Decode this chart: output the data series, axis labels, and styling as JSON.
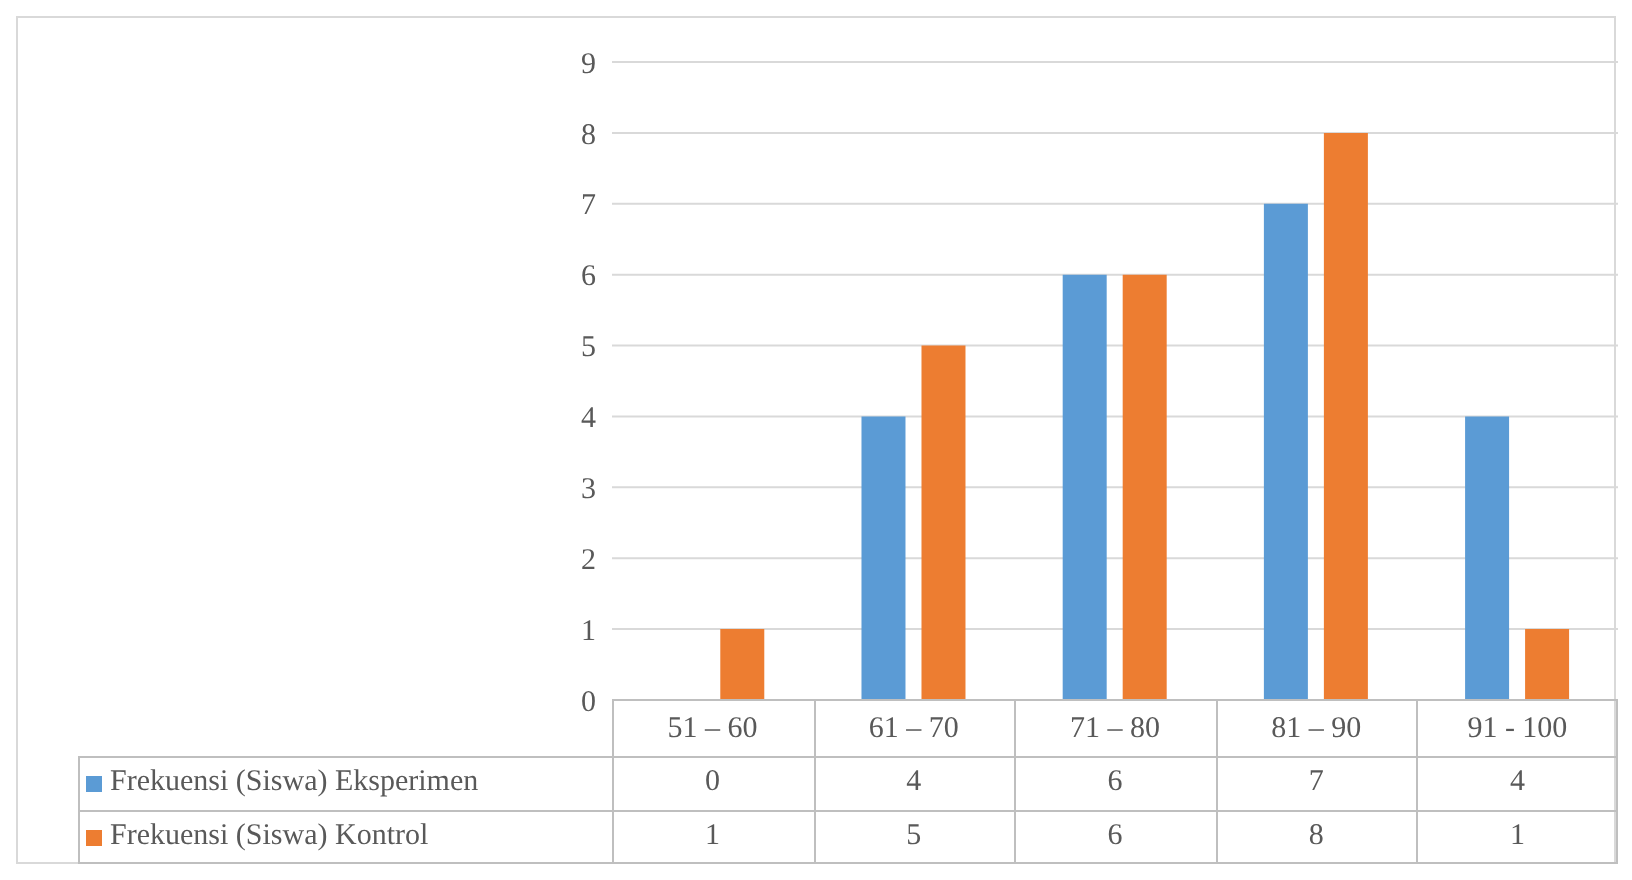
{
  "chart_data": {
    "type": "bar",
    "categories": [
      "51 – 60",
      "61 – 70",
      "71 – 80",
      "81 – 90",
      "91 - 100"
    ],
    "series": [
      {
        "name": "Frekuensi (Siswa) Eksperimen",
        "color": "#5b9bd5",
        "values": [
          0,
          4,
          6,
          7,
          4
        ]
      },
      {
        "name": "Frekuensi (Siswa) Kontrol",
        "color": "#ed7d31",
        "values": [
          1,
          5,
          6,
          8,
          1
        ]
      }
    ],
    "ylim": [
      0,
      9
    ],
    "yticks": [
      0,
      1,
      2,
      3,
      4,
      5,
      6,
      7,
      8,
      9
    ],
    "grid": "y",
    "legend": "bottom",
    "data_labels": true
  }
}
